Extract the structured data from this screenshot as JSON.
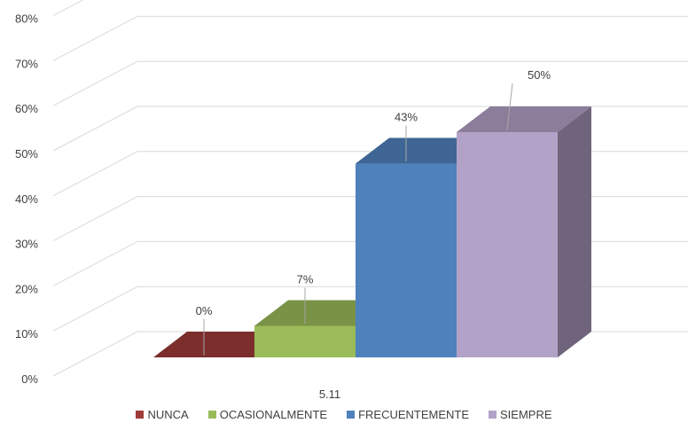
{
  "chart_data": {
    "type": "bar",
    "style": "3d-clustered-column",
    "category": "5.11",
    "yticks": [
      "0%",
      "10%",
      "20%",
      "30%",
      "40%",
      "50%",
      "60%",
      "70%",
      "80%"
    ],
    "ylim": [
      0,
      80
    ],
    "grid": true,
    "legend_position": "bottom",
    "series": [
      {
        "name": "NUNCA",
        "value": 0,
        "label": "0%",
        "color": "#9e3b39"
      },
      {
        "name": "OCASIONALMENTE",
        "value": 7,
        "label": "7%",
        "color": "#9bbb59"
      },
      {
        "name": "FRECUENTEMENTE",
        "value": 43,
        "label": "43%",
        "color": "#4f81bd"
      },
      {
        "name": "SIEMPRE",
        "value": 50,
        "label": "50%",
        "color": "#b3a2c7"
      }
    ]
  }
}
